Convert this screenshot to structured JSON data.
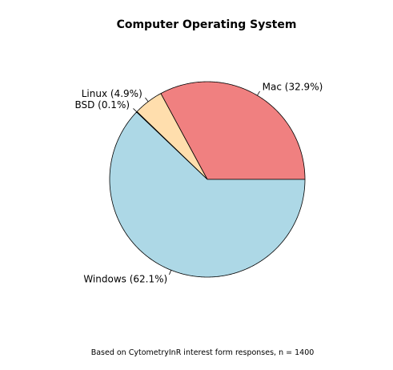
{
  "chart_data": {
    "type": "pie",
    "title": "Computer Operating System",
    "caption": "Based on CytometryInR interest form responses, n = 1400",
    "slices": [
      {
        "label": "Mac (32.9%)",
        "value": 32.9,
        "color": "#f08080"
      },
      {
        "label": "Linux (4.9%)",
        "value": 4.9,
        "color": "#ffdead"
      },
      {
        "label": "BSD (0.1%)",
        "value": 0.1,
        "color": "#ffefd5"
      },
      {
        "label": "Windows (62.1%)",
        "value": 62.1,
        "color": "#add8e6"
      }
    ],
    "direction": "clockwise"
  }
}
